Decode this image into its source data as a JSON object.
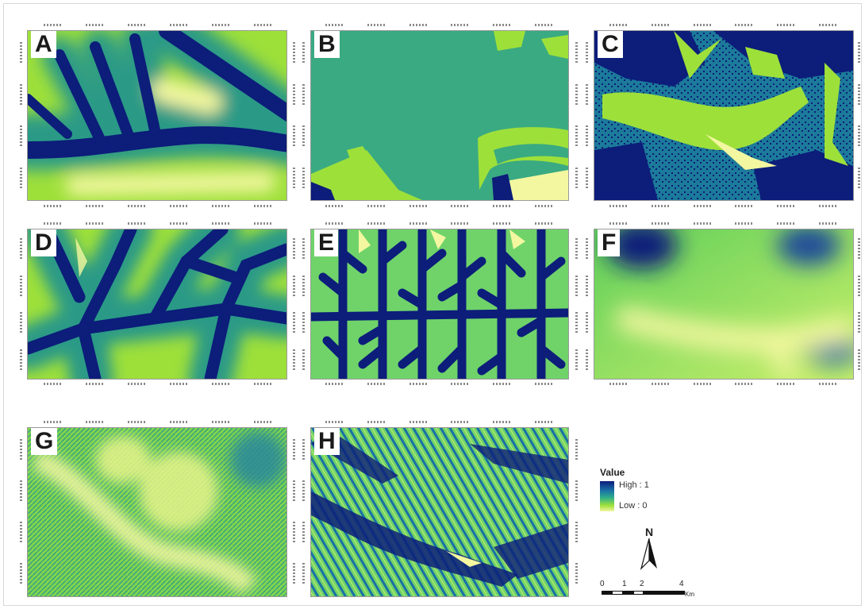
{
  "panels": [
    {
      "label": "A"
    },
    {
      "label": "B"
    },
    {
      "label": "C"
    },
    {
      "label": "D"
    },
    {
      "label": "E"
    },
    {
      "label": "F"
    },
    {
      "label": "G"
    },
    {
      "label": "H"
    }
  ],
  "legend": {
    "title": "Value",
    "high_label": "High : 1",
    "low_label": "Low : 0",
    "ramp_colors": [
      "#0c1d7a",
      "#1a6fa6",
      "#2fb08a",
      "#9ee03a",
      "#f3f7a0"
    ]
  },
  "north_arrow": {
    "label": "N",
    "icon": "north-arrow-icon"
  },
  "scale_bar": {
    "ticks": [
      "0",
      "1",
      "2",
      "4"
    ],
    "unit": "Km"
  },
  "colors": {
    "dark_blue": "#0c1d7a",
    "teal": "#2a9a86",
    "green": "#5fcf5a",
    "lime": "#b8e84a",
    "pale_yellow": "#f3f7a0"
  }
}
